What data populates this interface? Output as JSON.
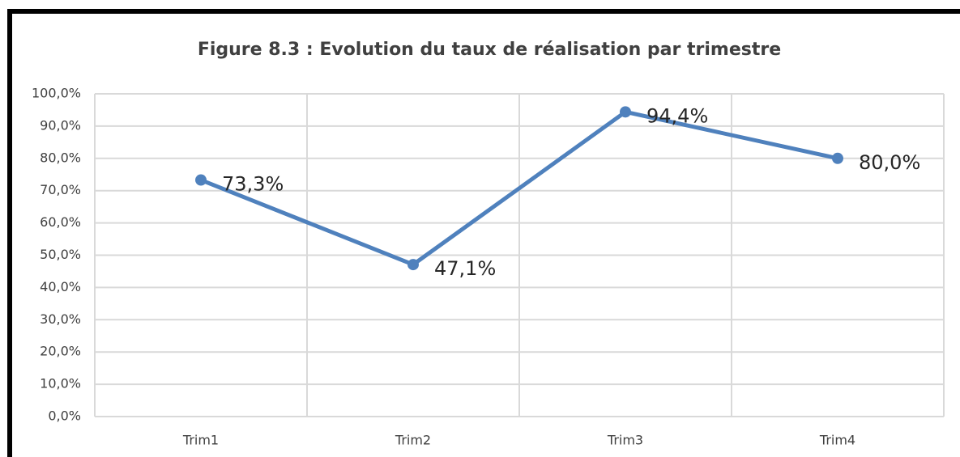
{
  "chart_data": {
    "type": "line",
    "title": "Figure 8.3 : Evolution du taux de réalisation par trimestre",
    "categories": [
      "Trim1",
      "Trim2",
      "Trim3",
      "Trim4"
    ],
    "series": [
      {
        "name": "Taux de réalisation",
        "color": "#4f81bd",
        "values": [
          73.3,
          47.1,
          94.4,
          80.0
        ],
        "value_labels": [
          "73,3%",
          "47,1%",
          "94,4%",
          "80,0%"
        ]
      }
    ],
    "ylim": [
      0,
      100
    ],
    "yticks": [
      {
        "value": 0,
        "label": "0,0%"
      },
      {
        "value": 10,
        "label": "10,0%"
      },
      {
        "value": 20,
        "label": "20,0%"
      },
      {
        "value": 30,
        "label": "30,0%"
      },
      {
        "value": 40,
        "label": "40,0%"
      },
      {
        "value": 50,
        "label": "50,0%"
      },
      {
        "value": 60,
        "label": "60,0%"
      },
      {
        "value": 70,
        "label": "70,0%"
      },
      {
        "value": 80,
        "label": "80,0%"
      },
      {
        "value": 90,
        "label": "90,0%"
      },
      {
        "value": 100,
        "label": "100,0%"
      }
    ],
    "grid": true
  }
}
